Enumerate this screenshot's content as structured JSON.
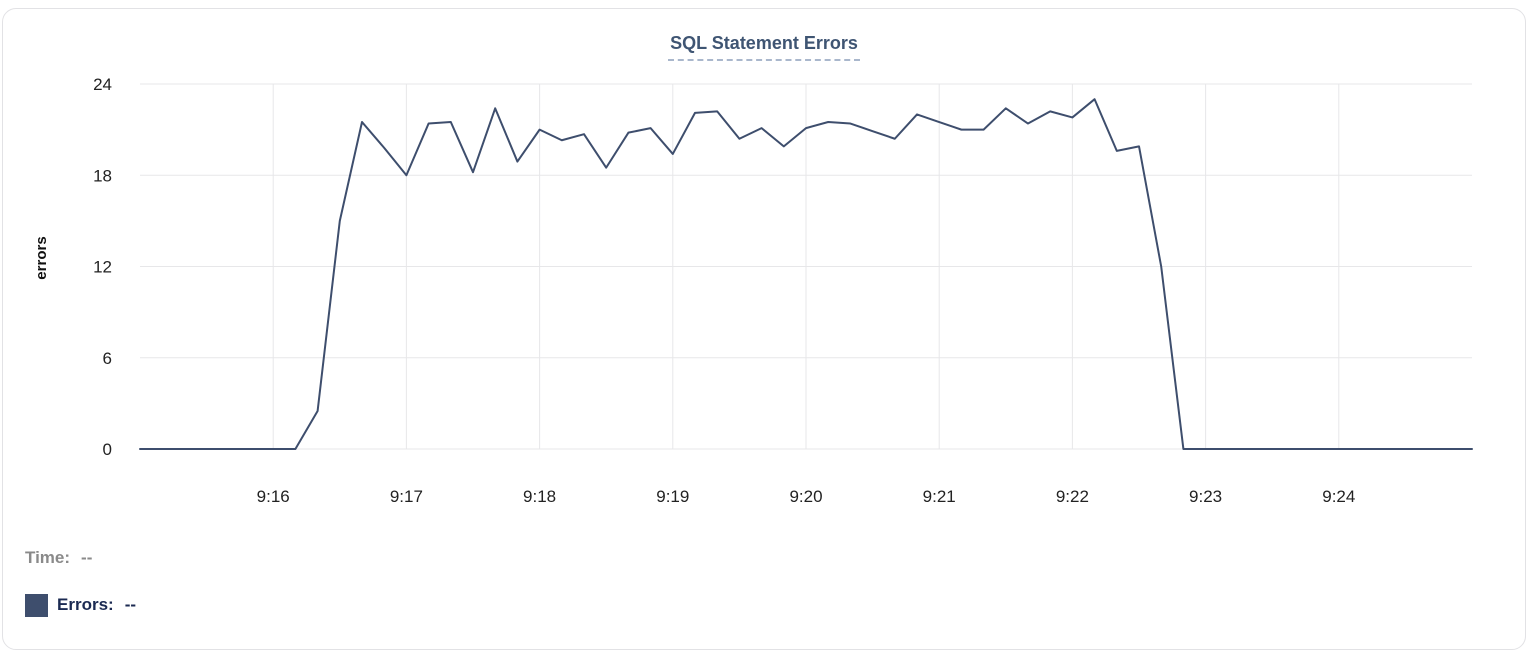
{
  "card": {
    "title": "SQL Statement Errors"
  },
  "legend": {
    "time_label": "Time:",
    "time_value": "--",
    "errors_label": "Errors:",
    "errors_value": "--"
  },
  "colors": {
    "line": "#3e4e6d",
    "title": "#3f5573",
    "title_underline": "#a9b7cc",
    "grid": "#e7e7e9",
    "axis_text": "#222222",
    "legend_time": "#8a8a8a",
    "legend_errors": "#1b2a52",
    "swatch": "#3e4e6d",
    "card_border": "#e2e2e5"
  },
  "chart_data": {
    "type": "line",
    "title": "SQL Statement Errors",
    "xlabel": "",
    "ylabel": "errors",
    "ylim": [
      0,
      24
    ],
    "y_ticks": [
      0,
      6,
      12,
      18,
      24
    ],
    "x_ticks": [
      "9:16",
      "9:17",
      "9:18",
      "9:19",
      "9:20",
      "9:21",
      "9:22",
      "9:23",
      "9:24"
    ],
    "x_range": [
      "9:15:00",
      "9:25:00"
    ],
    "grid": true,
    "legend_position": "bottom-left",
    "series": [
      {
        "name": "Errors",
        "points": [
          [
            "9:15:00",
            0
          ],
          [
            "9:15:10",
            0
          ],
          [
            "9:15:20",
            0
          ],
          [
            "9:15:30",
            0
          ],
          [
            "9:15:40",
            0
          ],
          [
            "9:15:50",
            0
          ],
          [
            "9:16:00",
            0
          ],
          [
            "9:16:10",
            0
          ],
          [
            "9:16:20",
            2.5
          ],
          [
            "9:16:30",
            15
          ],
          [
            "9:16:40",
            21.5
          ],
          [
            "9:16:50",
            19.8
          ],
          [
            "9:17:00",
            18
          ],
          [
            "9:17:10",
            21.4
          ],
          [
            "9:17:20",
            21.5
          ],
          [
            "9:17:30",
            18.2
          ],
          [
            "9:17:40",
            22.4
          ],
          [
            "9:17:50",
            18.9
          ],
          [
            "9:18:00",
            21
          ],
          [
            "9:18:10",
            20.3
          ],
          [
            "9:18:20",
            20.7
          ],
          [
            "9:18:30",
            18.5
          ],
          [
            "9:18:40",
            20.8
          ],
          [
            "9:18:50",
            21.1
          ],
          [
            "9:19:00",
            19.4
          ],
          [
            "9:19:10",
            22.1
          ],
          [
            "9:19:20",
            22.2
          ],
          [
            "9:19:30",
            20.4
          ],
          [
            "9:19:40",
            21.1
          ],
          [
            "9:19:50",
            19.9
          ],
          [
            "9:20:00",
            21.1
          ],
          [
            "9:20:10",
            21.5
          ],
          [
            "9:20:20",
            21.4
          ],
          [
            "9:20:30",
            20.9
          ],
          [
            "9:20:40",
            20.4
          ],
          [
            "9:20:50",
            22
          ],
          [
            "9:21:00",
            21.5
          ],
          [
            "9:21:10",
            21
          ],
          [
            "9:21:20",
            21
          ],
          [
            "9:21:30",
            22.4
          ],
          [
            "9:21:40",
            21.4
          ],
          [
            "9:21:50",
            22.2
          ],
          [
            "9:22:00",
            21.8
          ],
          [
            "9:22:10",
            23
          ],
          [
            "9:22:20",
            19.6
          ],
          [
            "9:22:30",
            19.9
          ],
          [
            "9:22:40",
            12
          ],
          [
            "9:22:50",
            0
          ],
          [
            "9:23:00",
            0
          ],
          [
            "9:23:10",
            0
          ],
          [
            "9:23:20",
            0
          ],
          [
            "9:23:30",
            0
          ],
          [
            "9:23:40",
            0
          ],
          [
            "9:23:50",
            0
          ],
          [
            "9:24:00",
            0
          ],
          [
            "9:24:10",
            0
          ],
          [
            "9:24:20",
            0
          ],
          [
            "9:24:30",
            0
          ],
          [
            "9:24:40",
            0
          ],
          [
            "9:24:50",
            0
          ],
          [
            "9:25:00",
            0
          ]
        ]
      }
    ]
  }
}
